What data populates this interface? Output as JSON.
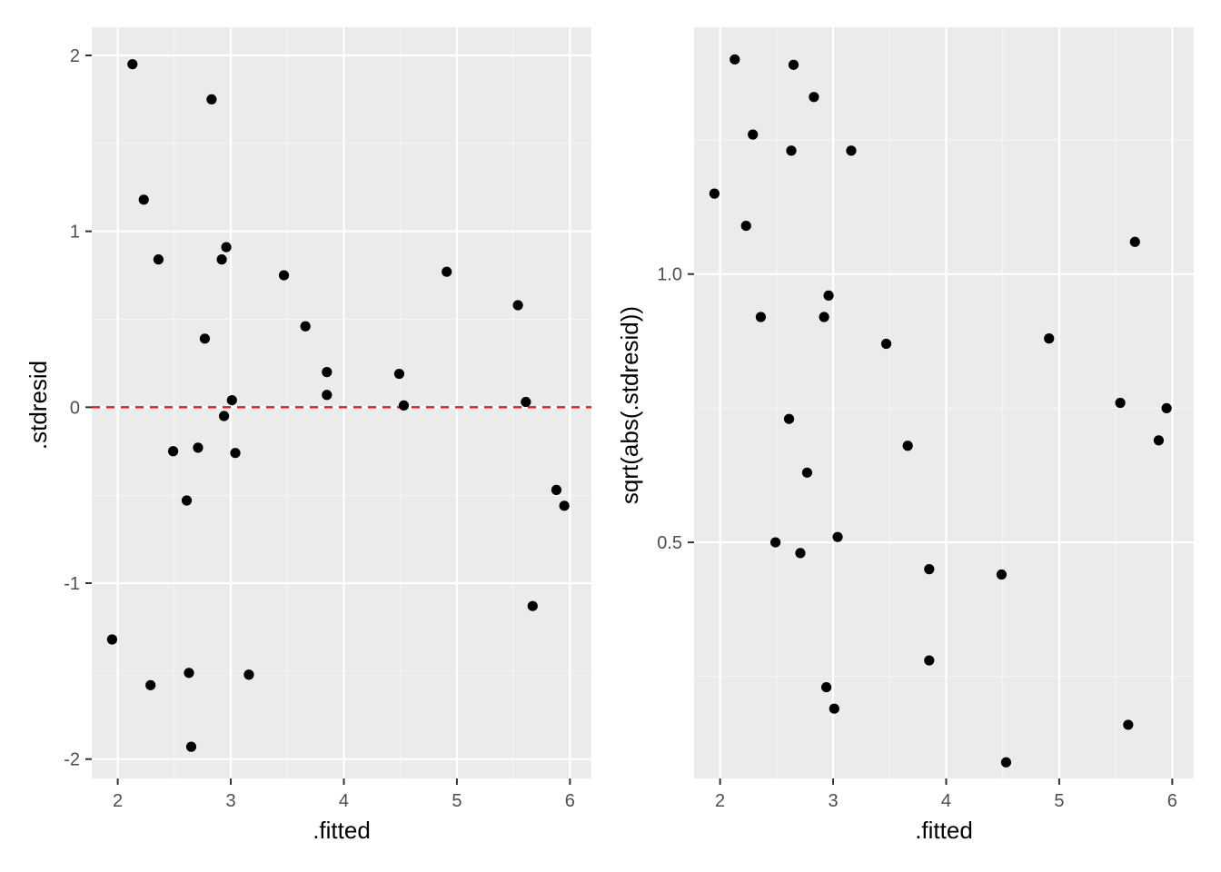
{
  "colors": {
    "panel_background": "#ebebeb",
    "grid_major": "#ffffff",
    "grid_minor": "#f5f5f5",
    "point": "#000000",
    "reference_line": "#e41a1c",
    "tick_label": "#4d4d4d"
  },
  "chart_data": [
    {
      "type": "scatter",
      "title": "",
      "xlabel": ".fitted",
      "ylabel": ".stdresid",
      "xlim": [
        1.77,
        6.19
      ],
      "ylim": [
        -2.11,
        2.16
      ],
      "x_ticks": [
        2,
        3,
        4,
        5,
        6
      ],
      "x_tick_labels": [
        "2",
        "3",
        "4",
        "5",
        "6"
      ],
      "y_ticks": [
        -2,
        -1,
        0,
        1,
        2
      ],
      "y_tick_labels": [
        "-2",
        "-1",
        "0",
        "1",
        "2"
      ],
      "grid": true,
      "reference_line": {
        "y": 0,
        "style": "dashed"
      },
      "x": [
        1.95,
        2.13,
        2.23,
        2.29,
        2.36,
        2.49,
        2.61,
        2.63,
        2.65,
        2.71,
        2.77,
        2.83,
        2.92,
        2.94,
        2.96,
        3.01,
        3.04,
        3.16,
        3.47,
        3.66,
        3.85,
        3.85,
        4.49,
        4.53,
        4.91,
        5.54,
        5.61,
        5.67,
        5.88,
        5.95
      ],
      "y": [
        -1.32,
        1.95,
        1.18,
        -1.58,
        0.84,
        -0.25,
        -0.53,
        -1.51,
        -1.93,
        -0.23,
        0.39,
        1.75,
        0.84,
        -0.05,
        0.91,
        0.04,
        -0.26,
        -1.52,
        0.75,
        0.46,
        0.2,
        0.07,
        0.19,
        0.01,
        0.77,
        0.58,
        0.03,
        -1.13,
        -0.47,
        -0.56
      ]
    },
    {
      "type": "scatter",
      "title": "",
      "xlabel": ".fitted",
      "ylabel": "sqrt(abs(.stdresid))",
      "xlim": [
        1.77,
        6.19
      ],
      "ylim": [
        0.06,
        1.46
      ],
      "x_ticks": [
        2,
        3,
        4,
        5,
        6
      ],
      "x_tick_labels": [
        "2",
        "3",
        "4",
        "5",
        "6"
      ],
      "y_ticks": [
        0.5,
        1.0
      ],
      "y_tick_labels": [
        "0.5",
        "1.0"
      ],
      "grid": true,
      "x": [
        1.95,
        2.13,
        2.23,
        2.29,
        2.36,
        2.49,
        2.61,
        2.63,
        2.65,
        2.71,
        2.77,
        2.83,
        2.92,
        2.94,
        2.96,
        3.01,
        3.04,
        3.16,
        3.47,
        3.66,
        3.85,
        3.85,
        4.49,
        4.53,
        4.91,
        5.54,
        5.61,
        5.67,
        5.88,
        5.95
      ],
      "y": [
        1.15,
        1.4,
        1.09,
        1.26,
        0.92,
        0.5,
        0.73,
        1.23,
        1.39,
        0.48,
        0.63,
        1.33,
        0.92,
        0.23,
        0.96,
        0.19,
        0.51,
        1.23,
        0.87,
        0.68,
        0.45,
        0.28,
        0.44,
        0.09,
        0.88,
        0.76,
        0.16,
        1.06,
        0.69,
        0.75
      ]
    }
  ]
}
